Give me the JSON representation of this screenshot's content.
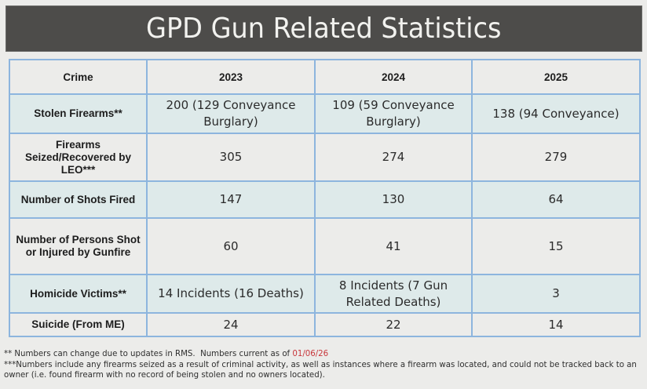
{
  "title": "GPD Gun Related Statistics",
  "table": {
    "headers": [
      "Crime",
      "2023",
      "2024",
      "2025"
    ],
    "rows": [
      {
        "crime": "Stolen Firearms**",
        "y2023": "200 (129 Conveyance Burglary)",
        "y2024": "109 (59 Conveyance Burglary)",
        "y2025": "138 (94 Conveyance)"
      },
      {
        "crime": "Firearms Seized/Recovered by LEO***",
        "y2023": "305",
        "y2024": "274",
        "y2025": "279"
      },
      {
        "crime": "Number of Shots Fired",
        "y2023": "147",
        "y2024": "130",
        "y2025": "64"
      },
      {
        "crime": "Number of Persons Shot or Injured by Gunfire",
        "y2023": "60",
        "y2024": "41",
        "y2025": "15"
      },
      {
        "crime": "Homicide Victims**",
        "y2023": "14 Incidents (16 Deaths)",
        "y2024": "8 Incidents (7 Gun Related Deaths)",
        "y2025": "3"
      },
      {
        "crime": "Suicide (From ME)",
        "y2023": "24",
        "y2024": "22",
        "y2025": "14"
      }
    ]
  },
  "footnotes": {
    "note1_text": "** Numbers can change due to updates in RMS.  Numbers current as of ",
    "note1_date": "01/06/26",
    "note2_text": "***Numbers include any firearms seized as a result of criminal activity, as well as instances where a firearm was located, and could not be tracked back to an owner (i.e. found firearm with no record of being stolen and no owners located)."
  },
  "colors": {
    "banner": "#4d4c4a",
    "grid": "#8db5de",
    "shaded_row": "#deeaea",
    "date_highlight": "#c8363b"
  }
}
